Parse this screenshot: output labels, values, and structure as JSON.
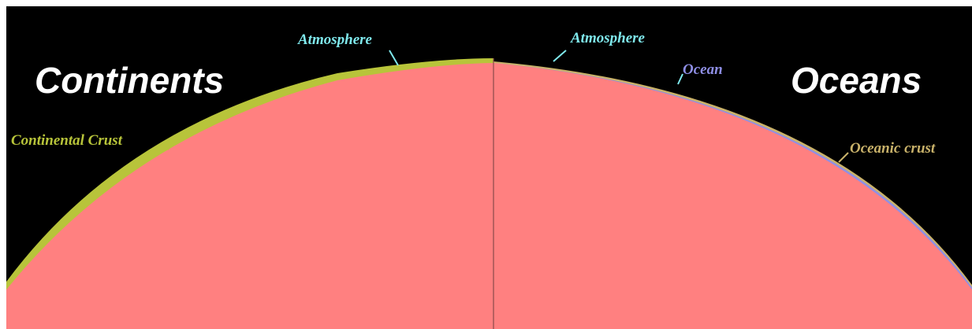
{
  "headings": {
    "left": "Continents",
    "right": "Oceans"
  },
  "labels": {
    "atmosphere_left": "Atmosphere",
    "atmosphere_right": "Atmosphere",
    "ocean": "Ocean",
    "continental_crust": "Continental Crust",
    "oceanic_crust": "Oceanic crust"
  },
  "colors": {
    "background": "#000000",
    "mantle": "#ff8080",
    "atmosphere": "#7fe8ec",
    "continental_crust": "#b8c43a",
    "ocean": "#8f8fe6",
    "oceanic_crust": "#c9b26a",
    "heading": "#ffffff",
    "divider": "#8a4a4a"
  }
}
